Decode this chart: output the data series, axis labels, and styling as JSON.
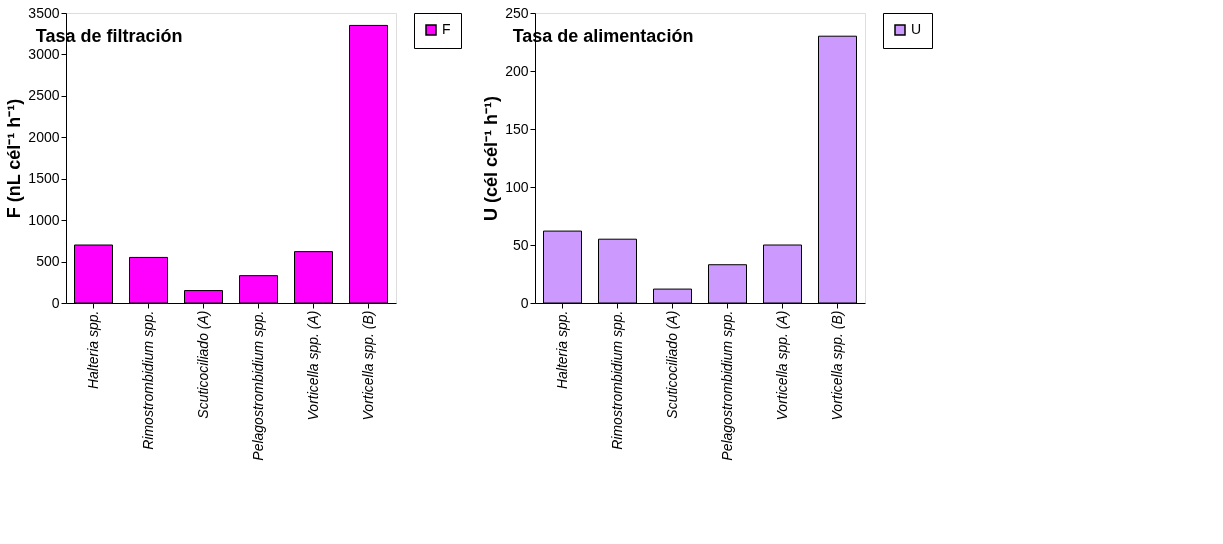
{
  "chart_data": [
    {
      "type": "bar",
      "title": "Tasa de filtración",
      "ylabel": "F (nL cél⁻¹ h⁻¹)",
      "categories": [
        "Halteria spp.",
        "Rimostrombidium spp.",
        "Scuticociliado (A)",
        "Pelagostrombidium spp.",
        "Vorticella spp. (A)",
        "Vorticella spp. (B)"
      ],
      "series": [
        {
          "name": "F",
          "color": "#ff00ff",
          "values": [
            700,
            550,
            150,
            330,
            620,
            3350
          ]
        }
      ],
      "ylim": [
        0,
        3500
      ],
      "yticks": [
        0,
        500,
        1000,
        1500,
        2000,
        2500,
        3000,
        3500
      ],
      "grid": false,
      "legend": "right"
    },
    {
      "type": "bar",
      "title": "Tasa de alimentación",
      "ylabel": "U (cél cél⁻¹ h⁻¹)",
      "categories": [
        "Halteria spp.",
        "Rimostrombidium spp.",
        "Scuticociliado (A)",
        "Pelagostrombidium spp.",
        "Vorticella spp. (A)",
        "Vorticella spp. (B)"
      ],
      "series": [
        {
          "name": "U",
          "color": "#cc99ff",
          "values": [
            62,
            55,
            12,
            33,
            50,
            230
          ]
        }
      ],
      "ylim": [
        0,
        250
      ],
      "yticks": [
        0,
        50,
        100,
        150,
        200,
        250
      ],
      "grid": false,
      "legend": "right"
    }
  ]
}
